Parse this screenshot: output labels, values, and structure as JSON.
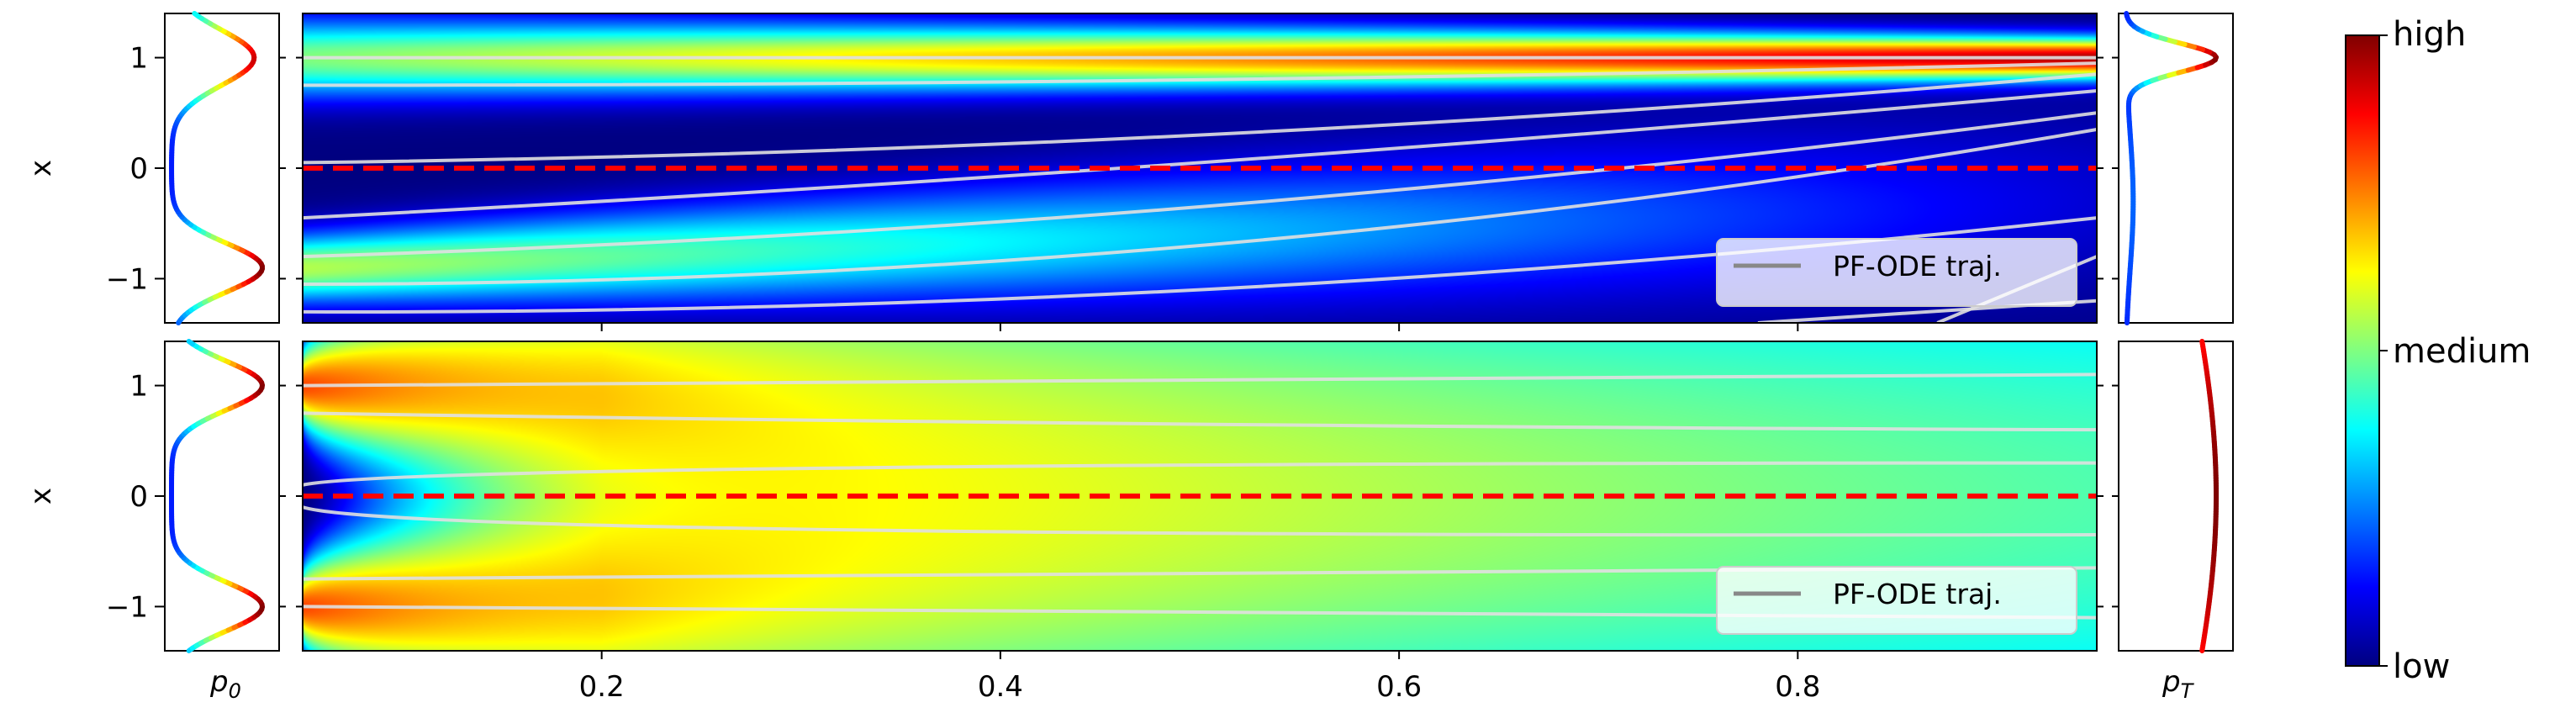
{
  "chart_data": [
    {
      "panel": "top",
      "type": "heatmap",
      "xlabel": "",
      "ylabel": "x",
      "xlim": [
        0.05,
        0.95
      ],
      "ylim": [
        -1.4,
        1.4
      ],
      "yticks": [
        -1,
        0,
        1
      ],
      "ytick_labels": [
        "−1",
        "0",
        "1"
      ],
      "legend": {
        "label": "PF-ODE traj.",
        "placement": "lower-right"
      },
      "reference_line": {
        "y": 0,
        "style": "dashed",
        "color": "#ff0000"
      },
      "density_modes_start": [
        -0.9,
        1.0
      ],
      "density_modes_end": [
        1.0
      ],
      "trajectories": [
        {
          "t": [
            0.05,
            0.95
          ],
          "x": [
            1.0,
            1.0
          ]
        },
        {
          "t": [
            0.05,
            0.5,
            0.95
          ],
          "x": [
            0.75,
            0.8,
            0.95
          ]
        },
        {
          "t": [
            0.05,
            0.5,
            0.95
          ],
          "x": [
            0.05,
            0.3,
            0.85
          ]
        },
        {
          "t": [
            0.05,
            0.5,
            0.95
          ],
          "x": [
            -0.45,
            0.05,
            0.7
          ]
        },
        {
          "t": [
            0.05,
            0.5,
            0.95
          ],
          "x": [
            -0.8,
            -0.35,
            0.5
          ]
        },
        {
          "t": [
            0.05,
            0.5,
            0.95
          ],
          "x": [
            -1.05,
            -0.7,
            0.35
          ]
        },
        {
          "t": [
            0.05,
            0.5,
            0.95
          ],
          "x": [
            -1.3,
            -1.1,
            -0.45
          ]
        },
        {
          "t": [
            0.78,
            0.95
          ],
          "x": [
            -1.4,
            -1.2
          ]
        },
        {
          "t": [
            0.87,
            0.95
          ],
          "x": [
            -1.4,
            -0.8
          ]
        }
      ]
    },
    {
      "panel": "bottom",
      "type": "heatmap",
      "xlabel": "",
      "ylabel": "x",
      "xlim": [
        0.05,
        0.95
      ],
      "ylim": [
        -1.4,
        1.4
      ],
      "xticks": [
        0.2,
        0.4,
        0.6,
        0.8
      ],
      "xtick_labels": [
        "0.2",
        "0.4",
        "0.6",
        "0.8"
      ],
      "yticks": [
        -1,
        0,
        1
      ],
      "ytick_labels": [
        "−1",
        "0",
        "1"
      ],
      "legend": {
        "label": "PF-ODE traj.",
        "placement": "lower-right"
      },
      "reference_line": {
        "y": 0,
        "style": "dashed",
        "color": "#ff0000"
      },
      "density_modes_start": [
        -1.0,
        1.0
      ],
      "density_modes_end": [
        0.0
      ],
      "trajectories": [
        {
          "t": [
            0.05,
            0.95
          ],
          "x": [
            1.0,
            1.1
          ]
        },
        {
          "t": [
            0.05,
            0.5,
            0.95
          ],
          "x": [
            0.75,
            0.65,
            0.6
          ]
        },
        {
          "t": [
            0.05,
            0.3,
            0.95
          ],
          "x": [
            0.1,
            0.25,
            0.3
          ]
        },
        {
          "t": [
            0.05,
            0.3,
            0.95
          ],
          "x": [
            -0.1,
            -0.3,
            -0.35
          ]
        },
        {
          "t": [
            0.05,
            0.5,
            0.95
          ],
          "x": [
            -0.75,
            -0.7,
            -0.65
          ]
        },
        {
          "t": [
            0.05,
            0.95
          ],
          "x": [
            -1.0,
            -1.1
          ]
        }
      ]
    }
  ],
  "side_labels": {
    "p0": "p",
    "p0_sub": "0",
    "pT": "p",
    "pT_sub": "T"
  },
  "colorbar": {
    "labels": [
      "high",
      "medium",
      "low"
    ]
  }
}
